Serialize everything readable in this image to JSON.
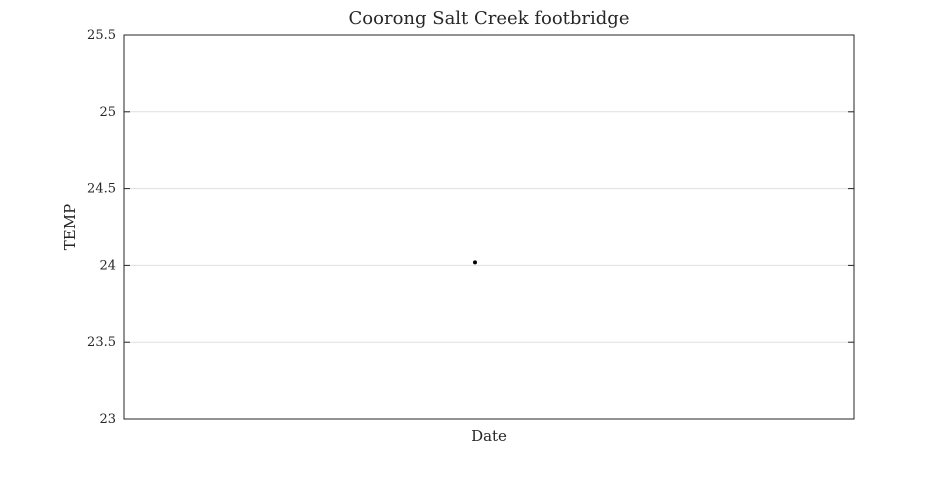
{
  "chart_data": {
    "type": "scatter",
    "title": "Coorong Salt Creek footbridge",
    "xlabel": "Date",
    "ylabel": "TEMP",
    "ylim": [
      23,
      25.5
    ],
    "yticks": [
      23,
      23.5,
      24,
      24.5,
      25,
      25.5
    ],
    "ytick_labels": [
      "23",
      "23.5",
      "24",
      "24.5",
      "25",
      "25.5"
    ],
    "x_tick_labels": [],
    "grid": "horizontal",
    "legend": "none",
    "series": [
      {
        "points": [
          {
            "x": null,
            "y": 24.02
          }
        ],
        "color": "#000000"
      }
    ]
  }
}
